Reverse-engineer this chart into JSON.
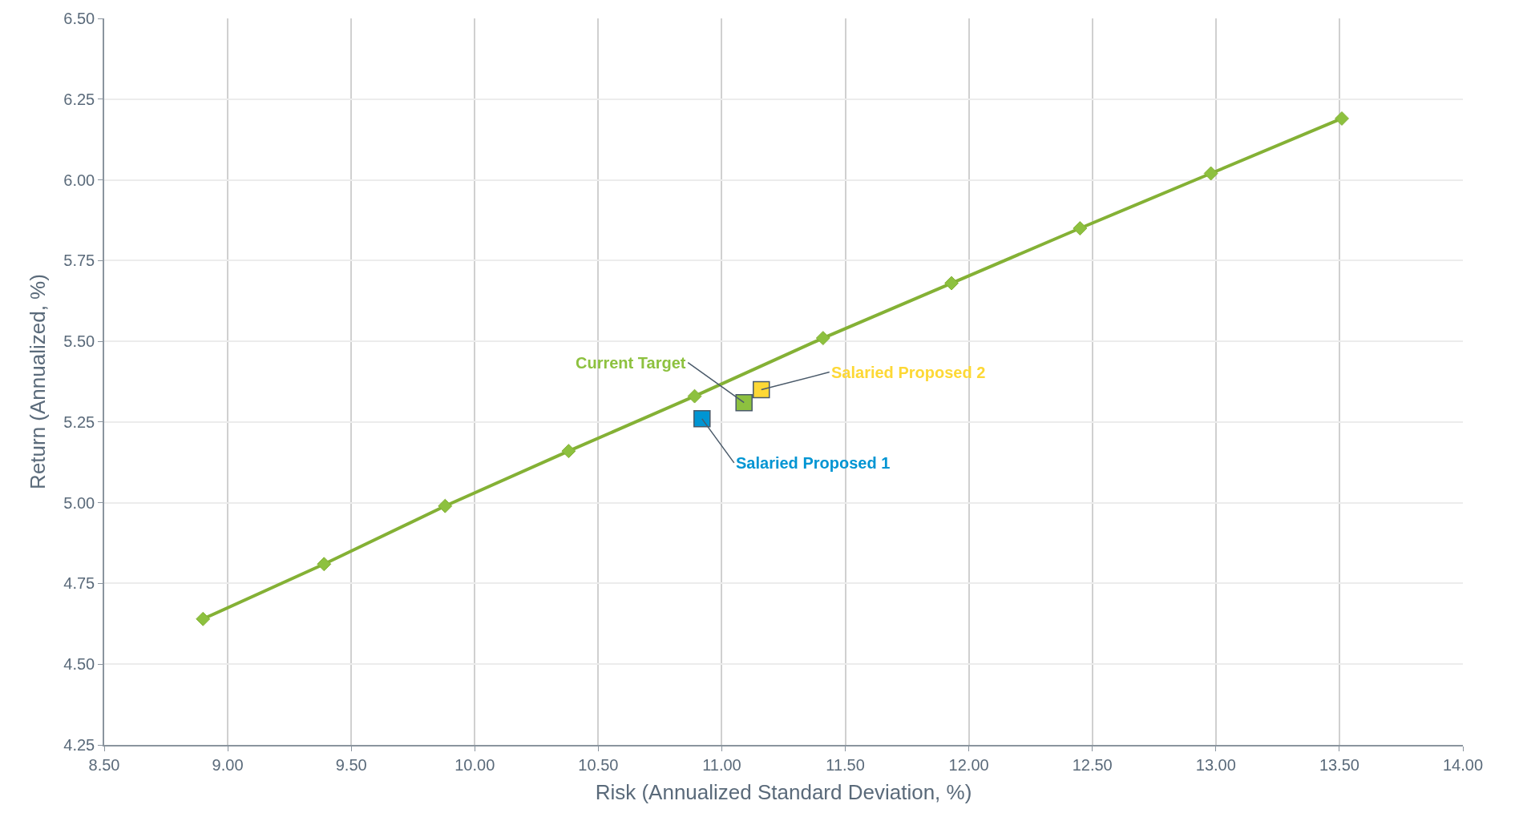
{
  "chart_data": {
    "type": "scatter",
    "xlabel": "Risk (Annualized Standard Deviation, %)",
    "ylabel": "Return (Annualized, %)",
    "xlim": [
      8.5,
      14.0
    ],
    "xticks": [
      {
        "value": 8.5,
        "label": "8.50"
      },
      {
        "value": 9.0,
        "label": "9.00"
      },
      {
        "value": 9.5,
        "label": "9.50"
      },
      {
        "value": 10.0,
        "label": "10.00"
      },
      {
        "value": 10.5,
        "label": "10.50"
      },
      {
        "value": 11.0,
        "label": "11.00"
      },
      {
        "value": 11.5,
        "label": "11.50"
      },
      {
        "value": 12.0,
        "label": "12.00"
      },
      {
        "value": 12.5,
        "label": "12.50"
      },
      {
        "value": 13.0,
        "label": "13.00"
      },
      {
        "value": 13.5,
        "label": "13.50"
      },
      {
        "value": 14.0,
        "label": "14.00"
      }
    ],
    "ylim": [
      4.25,
      6.5
    ],
    "yticks": [
      {
        "value": 4.25,
        "label": "4.25"
      },
      {
        "value": 4.5,
        "label": "4.50"
      },
      {
        "value": 4.75,
        "label": "4.75"
      },
      {
        "value": 5.0,
        "label": "5.00"
      },
      {
        "value": 5.25,
        "label": "5.25"
      },
      {
        "value": 5.5,
        "label": "5.50"
      },
      {
        "value": 5.75,
        "label": "5.75"
      },
      {
        "value": 6.0,
        "label": "6.00"
      },
      {
        "value": 6.25,
        "label": "6.25"
      },
      {
        "value": 6.5,
        "label": "6.50"
      }
    ],
    "grid": true,
    "series": [
      {
        "type": "line",
        "marker": "diamond",
        "color": "#84b135",
        "x": [
          8.9,
          9.39,
          9.88,
          10.38,
          10.89,
          11.41,
          11.93,
          12.45,
          12.98,
          13.51
        ],
        "values": [
          4.64,
          4.81,
          4.99,
          5.16,
          5.33,
          5.51,
          5.68,
          5.85,
          6.02,
          6.19
        ]
      },
      {
        "marker": "square",
        "name": "Current Target",
        "color": "#8dc13f",
        "x": [
          11.09
        ],
        "values": [
          5.31
        ]
      },
      {
        "marker": "square",
        "name": "Salaried Proposed 1",
        "color": "#0095d3",
        "x": [
          10.92
        ],
        "values": [
          5.26
        ]
      },
      {
        "marker": "square",
        "name": "Salaried Proposed 2",
        "color": "#fdd835",
        "x": [
          11.16
        ],
        "values": [
          5.35
        ]
      }
    ]
  }
}
